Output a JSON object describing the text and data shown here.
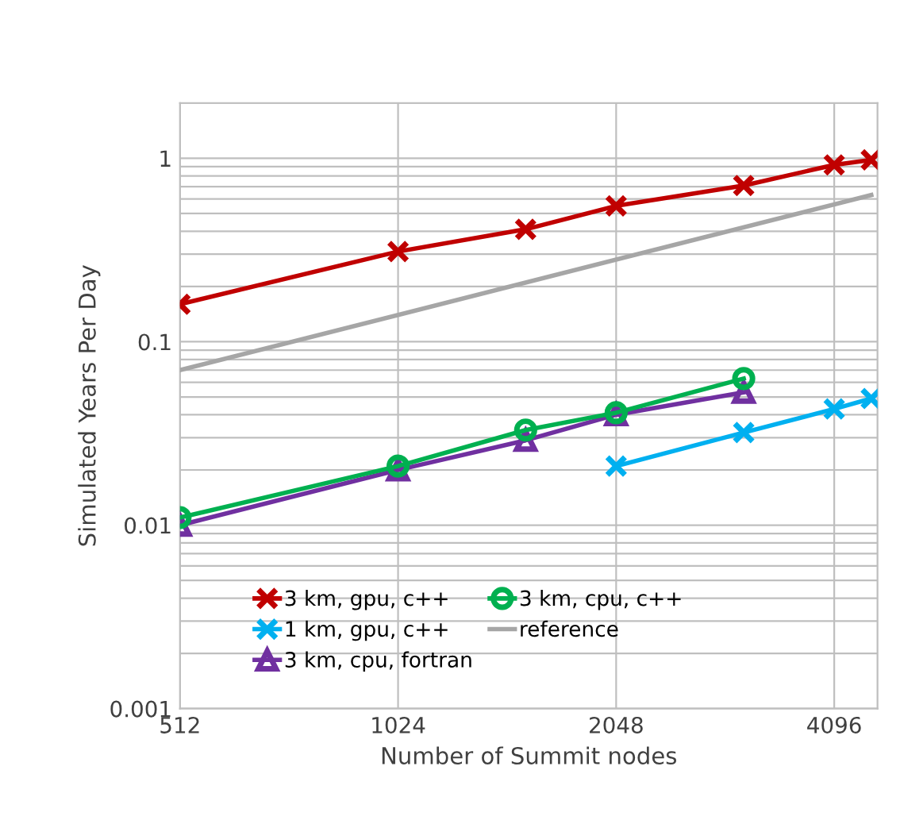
{
  "chart_data": {
    "type": "line",
    "xlabel": "Number of Summit nodes",
    "ylabel": "Simulated Years Per Day",
    "log": "xy",
    "xlim": [
      512,
      4700
    ],
    "ylim": [
      0.001,
      2
    ],
    "xticks": [
      512,
      1024,
      2048,
      4096
    ],
    "yticks": [
      {
        "value": 0.001,
        "label": "0.001"
      },
      {
        "value": 0.01,
        "label": "0.01"
      },
      {
        "value": 0.1,
        "label": "0.1"
      },
      {
        "value": 1,
        "label": "1"
      }
    ],
    "grid": true,
    "legend": "bottom left",
    "series": [
      {
        "name": "3 km, gpu, c++",
        "color": "#c00000",
        "marker": "cross",
        "x": [
          512,
          1024,
          1536,
          2048,
          3072,
          4096,
          4608
        ],
        "values": [
          0.16,
          0.31,
          0.41,
          0.55,
          0.71,
          0.92,
          0.98
        ]
      },
      {
        "name": "1 km, gpu, c++",
        "color": "#00b0f0",
        "marker": "cross",
        "x": [
          2048,
          3072,
          4096,
          4608
        ],
        "values": [
          0.021,
          0.032,
          0.043,
          0.049
        ]
      },
      {
        "name": "3 km, cpu, fortran",
        "color": "#7030a0",
        "marker": "triangle",
        "x": [
          512,
          1024,
          1536,
          2048,
          3072
        ],
        "values": [
          0.01,
          0.02,
          0.029,
          0.04,
          0.053
        ]
      },
      {
        "name": "3 km, cpu, c++",
        "color": "#00b050",
        "marker": "circle",
        "x": [
          512,
          1024,
          1536,
          2048,
          3072
        ],
        "values": [
          0.011,
          0.021,
          0.033,
          0.041,
          0.063
        ]
      },
      {
        "name": "reference",
        "color": "#a6a6a6",
        "marker": "none",
        "x": [
          512,
          4608
        ],
        "values": [
          0.07,
          0.63
        ]
      }
    ]
  }
}
